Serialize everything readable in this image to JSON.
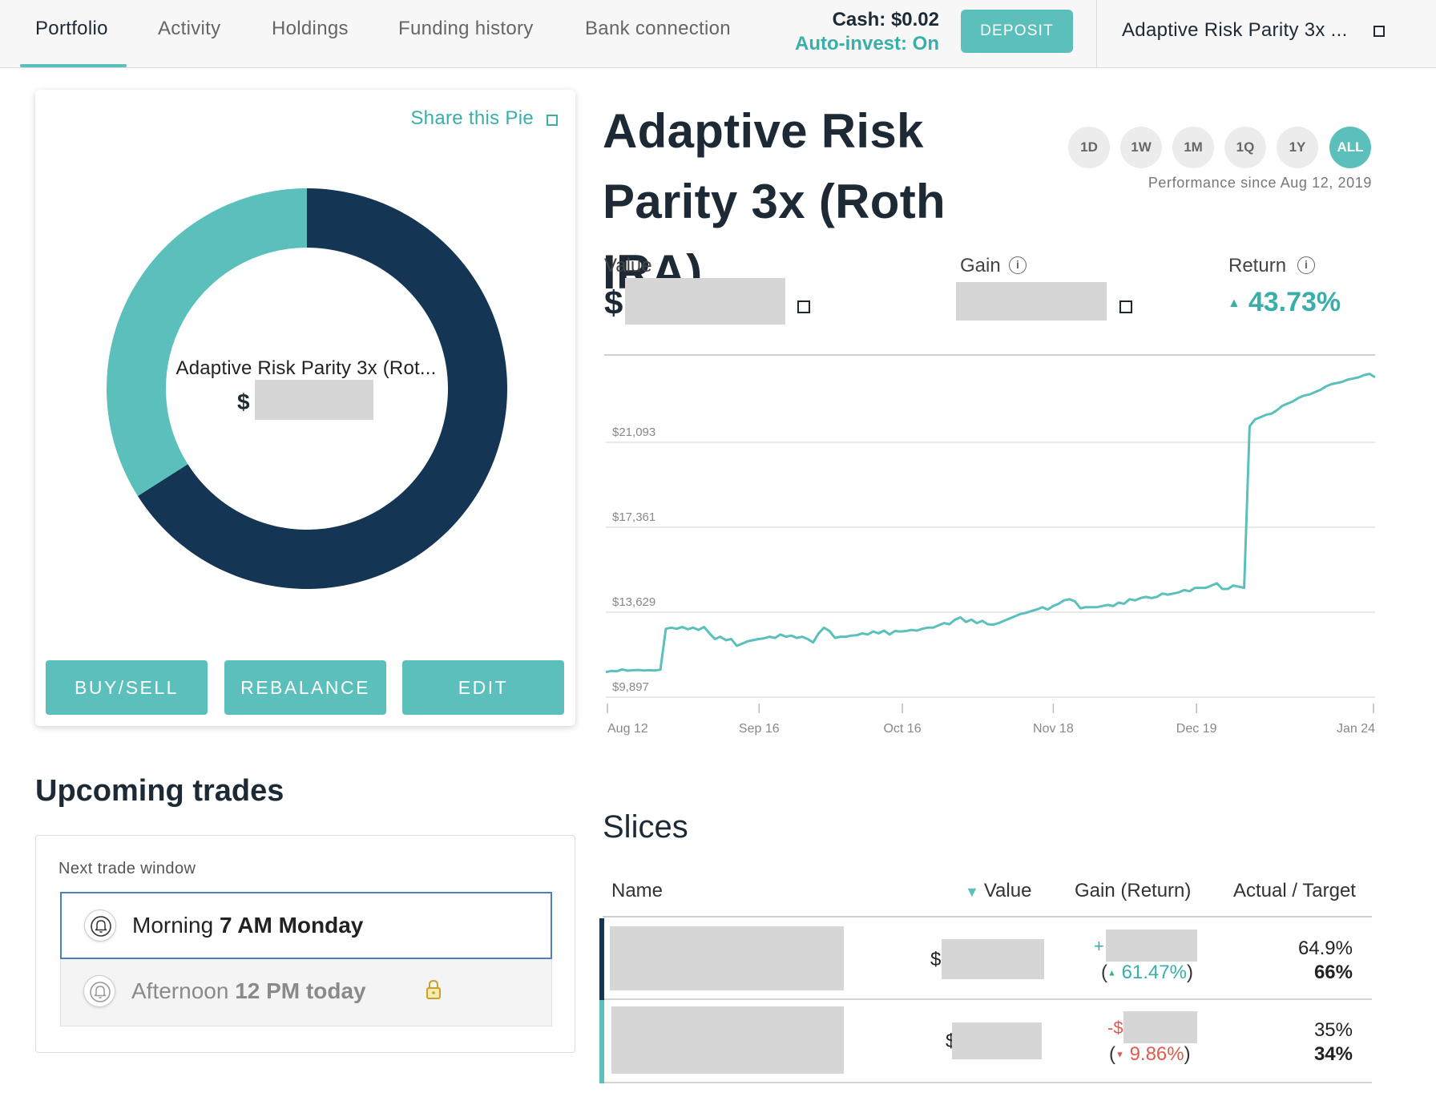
{
  "nav": {
    "tabs": [
      "Portfolio",
      "Activity",
      "Holdings",
      "Funding history",
      "Bank connection"
    ],
    "cash": "Cash: $0.02",
    "auto_invest": "Auto-invest: On",
    "deposit": "DEPOSIT",
    "pie_selector": "Adaptive Risk Parity 3x ..."
  },
  "pie_card": {
    "share": "Share this Pie",
    "center_label": "Adaptive Risk Parity 3x (Rot...",
    "center_currency": "$",
    "buttons": [
      "BUY/SELL",
      "REBALANCE",
      "EDIT"
    ],
    "slices": [
      {
        "fraction": 0.66,
        "color": "#153555"
      },
      {
        "fraction": 0.34,
        "color": "#5bc0bc"
      }
    ]
  },
  "upcoming": {
    "title": "Upcoming trades",
    "window_label": "Next trade window",
    "options": [
      {
        "prefix": "Morning",
        "time": "7 AM Monday",
        "selected": true
      },
      {
        "prefix": "Afternoon",
        "time": "12 PM today",
        "locked": true
      }
    ]
  },
  "header": {
    "title": "Adaptive Risk Parity 3x (Roth IRA)",
    "ranges": [
      "1D",
      "1W",
      "1M",
      "1Q",
      "1Y",
      "ALL"
    ],
    "active_range": "ALL",
    "performance_since": "Performance since Aug 12, 2019"
  },
  "stats": {
    "value_label": "Value",
    "value_currency": "$",
    "gain_label": "Gain",
    "return_label": "Return",
    "return_value": "43.73%"
  },
  "chart_data": {
    "type": "line",
    "y_ticks": [
      "$21,093",
      "$17,361",
      "$13,629",
      "$9,897"
    ],
    "x_ticks": [
      "Aug 12",
      "Sep 16",
      "Oct 16",
      "Nov 18",
      "Dec 19",
      "Jan 24"
    ],
    "ylim": [
      9897,
      24825
    ],
    "grid": true,
    "color": "#5bc0bc",
    "series": [
      {
        "values": [
          11000,
          11050,
          11030,
          11120,
          11060,
          11080,
          11090,
          11070,
          11080,
          11070,
          11100,
          12900,
          12950,
          12900,
          12980,
          12880,
          12950,
          12850,
          12980,
          12700,
          12450,
          12550,
          12400,
          12450,
          12150,
          12250,
          12350,
          12400,
          12450,
          12480,
          12550,
          12500,
          12650,
          12550,
          12600,
          12500,
          12550,
          12450,
          12300,
          12700,
          12950,
          12800,
          12500,
          12550,
          12550,
          12600,
          12620,
          12700,
          12650,
          12780,
          12700,
          12820,
          12650,
          12800,
          12780,
          12800,
          12850,
          12820,
          12900,
          12950,
          12950,
          13050,
          13150,
          13100,
          13300,
          13400,
          13200,
          13300,
          13150,
          13250,
          13100,
          13080,
          13150,
          13250,
          13350,
          13450,
          13550,
          13600,
          13680,
          13750,
          13850,
          13750,
          13900,
          14000,
          14150,
          14200,
          14100,
          13800,
          13850,
          13850,
          13850,
          13900,
          13950,
          13900,
          14050,
          14000,
          14200,
          14150,
          14250,
          14300,
          14250,
          14300,
          14450,
          14400,
          14450,
          14500,
          14600,
          14550,
          14700,
          14700,
          14700,
          14800,
          14900,
          14650,
          14650,
          14800,
          14750,
          14700,
          21800,
          22100,
          22200,
          22300,
          22350,
          22500,
          22700,
          22800,
          22900,
          23050,
          23150,
          23200,
          23300,
          23400,
          23550,
          23650,
          23700,
          23750,
          23850,
          23900,
          23950,
          24050,
          24100,
          23950
        ]
      }
    ]
  },
  "slices": {
    "title": "Slices",
    "columns": [
      "Name",
      "Value",
      "Gain (Return)",
      "Actual / Target"
    ],
    "rows": [
      {
        "color": "#153555",
        "value_currency": "$",
        "gain_sign": "+",
        "return": "61.47%",
        "direction": "up",
        "actual": "64.9%",
        "target": "66%"
      },
      {
        "color": "#5bc0bc",
        "value_currency": "$",
        "gain_sign": "-$",
        "return": "9.86%",
        "direction": "down",
        "actual": "35%",
        "target": "34%"
      }
    ]
  }
}
